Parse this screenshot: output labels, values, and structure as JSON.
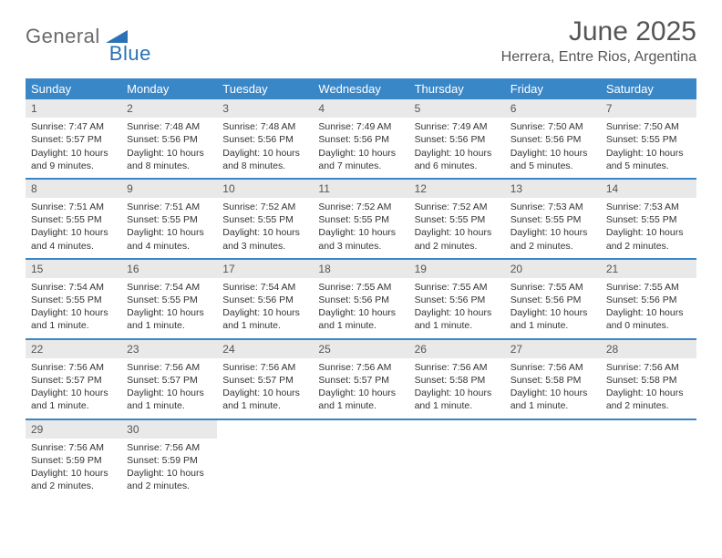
{
  "logo": {
    "text1": "General",
    "text2": "Blue"
  },
  "title": "June 2025",
  "location": "Herrera, Entre Rios, Argentina",
  "colors": {
    "header_bg": "#3a87c8",
    "daynum_bg": "#e9e9e9",
    "row_border": "#3a87c8",
    "text": "#333333",
    "title_text": "#555555",
    "logo_gray": "#6a6a6a",
    "logo_blue": "#2a72b5"
  },
  "weekdays": [
    "Sunday",
    "Monday",
    "Tuesday",
    "Wednesday",
    "Thursday",
    "Friday",
    "Saturday"
  ],
  "weeks": [
    [
      {
        "n": "1",
        "sr": "Sunrise: 7:47 AM",
        "ss": "Sunset: 5:57 PM",
        "dl": "Daylight: 10 hours and 9 minutes."
      },
      {
        "n": "2",
        "sr": "Sunrise: 7:48 AM",
        "ss": "Sunset: 5:56 PM",
        "dl": "Daylight: 10 hours and 8 minutes."
      },
      {
        "n": "3",
        "sr": "Sunrise: 7:48 AM",
        "ss": "Sunset: 5:56 PM",
        "dl": "Daylight: 10 hours and 8 minutes."
      },
      {
        "n": "4",
        "sr": "Sunrise: 7:49 AM",
        "ss": "Sunset: 5:56 PM",
        "dl": "Daylight: 10 hours and 7 minutes."
      },
      {
        "n": "5",
        "sr": "Sunrise: 7:49 AM",
        "ss": "Sunset: 5:56 PM",
        "dl": "Daylight: 10 hours and 6 minutes."
      },
      {
        "n": "6",
        "sr": "Sunrise: 7:50 AM",
        "ss": "Sunset: 5:56 PM",
        "dl": "Daylight: 10 hours and 5 minutes."
      },
      {
        "n": "7",
        "sr": "Sunrise: 7:50 AM",
        "ss": "Sunset: 5:55 PM",
        "dl": "Daylight: 10 hours and 5 minutes."
      }
    ],
    [
      {
        "n": "8",
        "sr": "Sunrise: 7:51 AM",
        "ss": "Sunset: 5:55 PM",
        "dl": "Daylight: 10 hours and 4 minutes."
      },
      {
        "n": "9",
        "sr": "Sunrise: 7:51 AM",
        "ss": "Sunset: 5:55 PM",
        "dl": "Daylight: 10 hours and 4 minutes."
      },
      {
        "n": "10",
        "sr": "Sunrise: 7:52 AM",
        "ss": "Sunset: 5:55 PM",
        "dl": "Daylight: 10 hours and 3 minutes."
      },
      {
        "n": "11",
        "sr": "Sunrise: 7:52 AM",
        "ss": "Sunset: 5:55 PM",
        "dl": "Daylight: 10 hours and 3 minutes."
      },
      {
        "n": "12",
        "sr": "Sunrise: 7:52 AM",
        "ss": "Sunset: 5:55 PM",
        "dl": "Daylight: 10 hours and 2 minutes."
      },
      {
        "n": "13",
        "sr": "Sunrise: 7:53 AM",
        "ss": "Sunset: 5:55 PM",
        "dl": "Daylight: 10 hours and 2 minutes."
      },
      {
        "n": "14",
        "sr": "Sunrise: 7:53 AM",
        "ss": "Sunset: 5:55 PM",
        "dl": "Daylight: 10 hours and 2 minutes."
      }
    ],
    [
      {
        "n": "15",
        "sr": "Sunrise: 7:54 AM",
        "ss": "Sunset: 5:55 PM",
        "dl": "Daylight: 10 hours and 1 minute."
      },
      {
        "n": "16",
        "sr": "Sunrise: 7:54 AM",
        "ss": "Sunset: 5:55 PM",
        "dl": "Daylight: 10 hours and 1 minute."
      },
      {
        "n": "17",
        "sr": "Sunrise: 7:54 AM",
        "ss": "Sunset: 5:56 PM",
        "dl": "Daylight: 10 hours and 1 minute."
      },
      {
        "n": "18",
        "sr": "Sunrise: 7:55 AM",
        "ss": "Sunset: 5:56 PM",
        "dl": "Daylight: 10 hours and 1 minute."
      },
      {
        "n": "19",
        "sr": "Sunrise: 7:55 AM",
        "ss": "Sunset: 5:56 PM",
        "dl": "Daylight: 10 hours and 1 minute."
      },
      {
        "n": "20",
        "sr": "Sunrise: 7:55 AM",
        "ss": "Sunset: 5:56 PM",
        "dl": "Daylight: 10 hours and 1 minute."
      },
      {
        "n": "21",
        "sr": "Sunrise: 7:55 AM",
        "ss": "Sunset: 5:56 PM",
        "dl": "Daylight: 10 hours and 0 minutes."
      }
    ],
    [
      {
        "n": "22",
        "sr": "Sunrise: 7:56 AM",
        "ss": "Sunset: 5:57 PM",
        "dl": "Daylight: 10 hours and 1 minute."
      },
      {
        "n": "23",
        "sr": "Sunrise: 7:56 AM",
        "ss": "Sunset: 5:57 PM",
        "dl": "Daylight: 10 hours and 1 minute."
      },
      {
        "n": "24",
        "sr": "Sunrise: 7:56 AM",
        "ss": "Sunset: 5:57 PM",
        "dl": "Daylight: 10 hours and 1 minute."
      },
      {
        "n": "25",
        "sr": "Sunrise: 7:56 AM",
        "ss": "Sunset: 5:57 PM",
        "dl": "Daylight: 10 hours and 1 minute."
      },
      {
        "n": "26",
        "sr": "Sunrise: 7:56 AM",
        "ss": "Sunset: 5:58 PM",
        "dl": "Daylight: 10 hours and 1 minute."
      },
      {
        "n": "27",
        "sr": "Sunrise: 7:56 AM",
        "ss": "Sunset: 5:58 PM",
        "dl": "Daylight: 10 hours and 1 minute."
      },
      {
        "n": "28",
        "sr": "Sunrise: 7:56 AM",
        "ss": "Sunset: 5:58 PM",
        "dl": "Daylight: 10 hours and 2 minutes."
      }
    ],
    [
      {
        "n": "29",
        "sr": "Sunrise: 7:56 AM",
        "ss": "Sunset: 5:59 PM",
        "dl": "Daylight: 10 hours and 2 minutes."
      },
      {
        "n": "30",
        "sr": "Sunrise: 7:56 AM",
        "ss": "Sunset: 5:59 PM",
        "dl": "Daylight: 10 hours and 2 minutes."
      },
      null,
      null,
      null,
      null,
      null
    ]
  ]
}
